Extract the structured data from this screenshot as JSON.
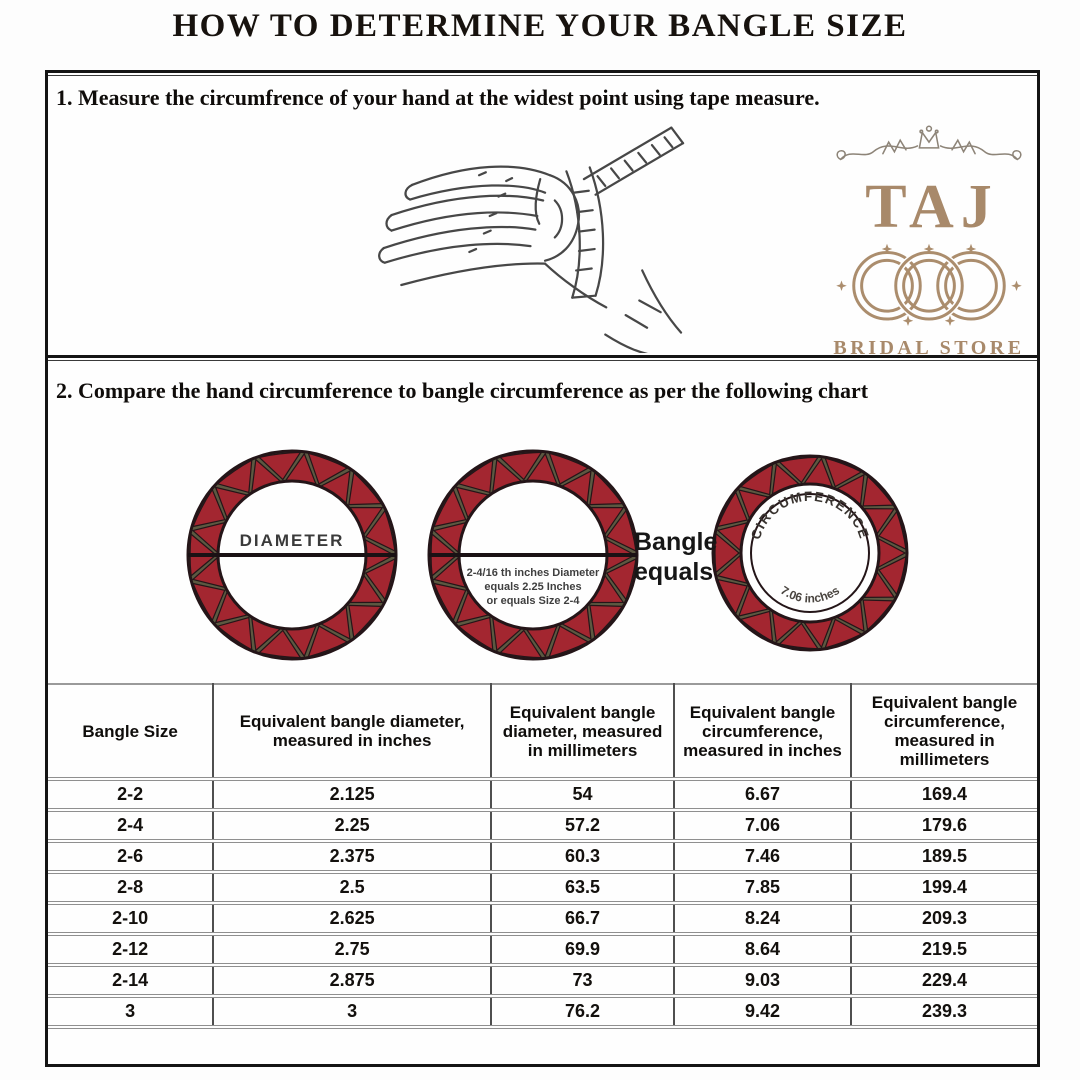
{
  "page_title": "HOW TO DETERMINE YOUR BANGLE SIZE",
  "step1": {
    "heading": "1. Measure the circumfrence of your hand at the widest point using tape measure."
  },
  "logo": {
    "brand": "TAJ",
    "subtitle": "BRIDAL STORE",
    "color": "#a8896a"
  },
  "step2": {
    "heading": "2. Compare the hand circumference to bangle circumference as per the following chart"
  },
  "diagram": {
    "diameter_label": "DIAMETER",
    "note_line1": "2-4/16 th inches Diameter",
    "note_line2": "equals 2.25 Inches",
    "note_line3": "or equals Size 2-4",
    "equals_label": "Bangle equals",
    "circumference_label": "CIRCUMFERENCE",
    "circumference_value": "7.06 inches",
    "colors": {
      "red": "#a32630",
      "olive": "#5c5941",
      "outline": "#241518"
    }
  },
  "size_chart": {
    "columns": [
      "Bangle Size",
      "Equivalent bangle diameter, measured in inches",
      "Equivalent bangle diameter, measured in millimeters",
      "Equivalent bangle circumference, measured in inches",
      "Equivalent bangle circumference, measured in millimeters"
    ],
    "rows": [
      [
        "2-2",
        "2.125",
        "54",
        "6.67",
        "169.4"
      ],
      [
        "2-4",
        "2.25",
        "57.2",
        "7.06",
        "179.6"
      ],
      [
        "2-6",
        "2.375",
        "60.3",
        "7.46",
        "189.5"
      ],
      [
        "2-8",
        "2.5",
        "63.5",
        "7.85",
        "199.4"
      ],
      [
        "2-10",
        "2.625",
        "66.7",
        "8.24",
        "209.3"
      ],
      [
        "2-12",
        "2.75",
        "69.9",
        "8.64",
        "219.5"
      ],
      [
        "2-14",
        "2.875",
        "73",
        "9.03",
        "229.4"
      ],
      [
        "3",
        "3",
        "76.2",
        "9.42",
        "239.3"
      ]
    ]
  }
}
